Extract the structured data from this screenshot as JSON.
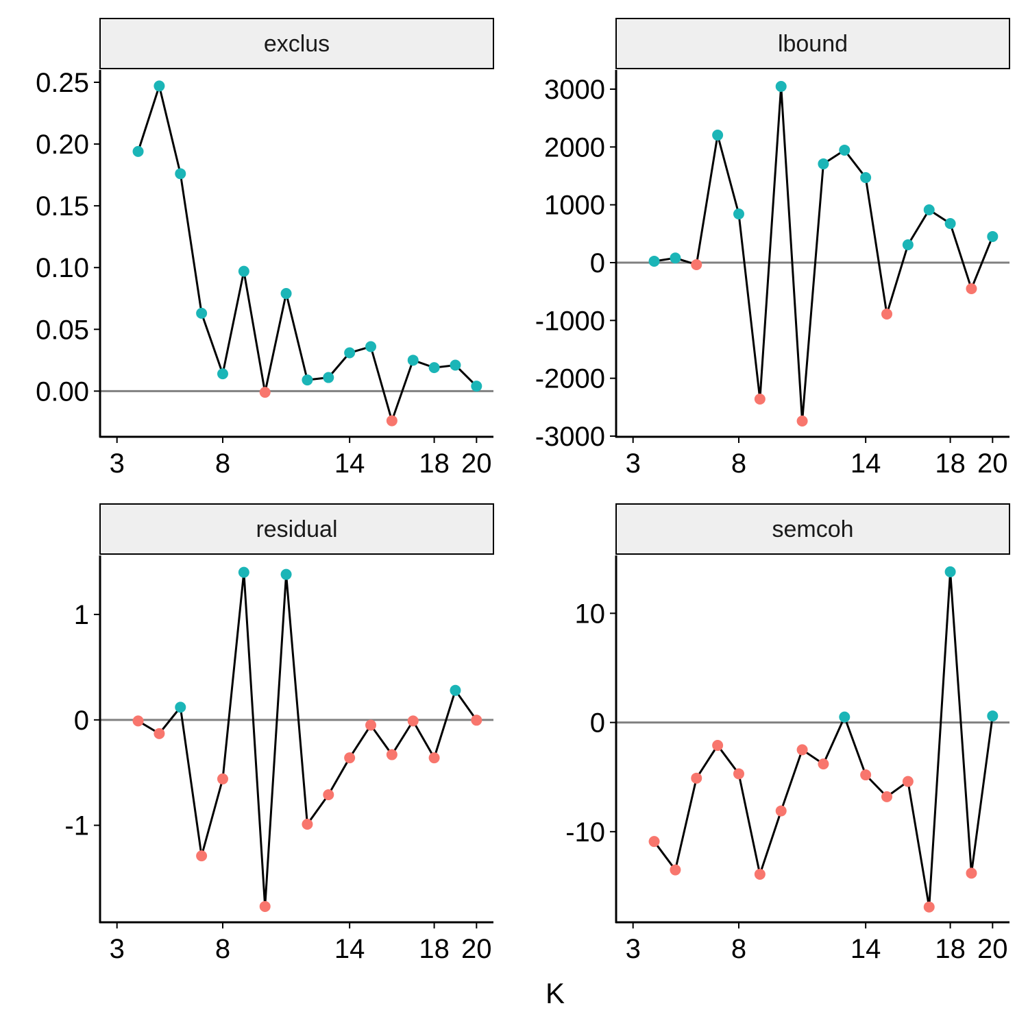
{
  "chart_data": [
    {
      "type": "line",
      "facet": "exclus",
      "x": [
        4,
        5,
        6,
        7,
        8,
        9,
        10,
        11,
        12,
        13,
        14,
        15,
        16,
        17,
        18,
        19,
        20
      ],
      "values": [
        0.194,
        0.247,
        0.176,
        0.063,
        0.014,
        0.097,
        -0.001,
        0.079,
        0.009,
        0.011,
        0.031,
        0.036,
        -0.024,
        0.025,
        0.019,
        0.021,
        0.004
      ],
      "ylim": [
        -0.037,
        0.26
      ],
      "yticks": [
        0,
        0.05,
        0.1,
        0.15,
        0.2,
        0.25
      ],
      "ytick_labels": [
        "0.00",
        "0.05",
        "0.10",
        "0.15",
        "0.20",
        "0.25"
      ]
    },
    {
      "type": "line",
      "facet": "lbound",
      "x": [
        4,
        5,
        6,
        7,
        8,
        9,
        10,
        11,
        12,
        13,
        14,
        15,
        16,
        17,
        18,
        19,
        20
      ],
      "values": [
        24,
        80,
        -35,
        2205,
        842,
        -2360,
        3047,
        -2739,
        1708,
        1945,
        1470,
        -889,
        308,
        913,
        676,
        -451,
        451
      ],
      "ylim": [
        -3012,
        3332
      ],
      "yticks": [
        -3000,
        -2000,
        -1000,
        0,
        1000,
        2000,
        3000
      ],
      "ytick_labels": [
        "-3000",
        "-2000",
        "-1000",
        "0",
        "1000",
        "2000",
        "3000"
      ]
    },
    {
      "type": "line",
      "facet": "residual",
      "x": [
        4,
        5,
        6,
        7,
        8,
        9,
        10,
        11,
        12,
        13,
        14,
        15,
        16,
        17,
        18,
        19,
        20
      ],
      "values": [
        -0.01,
        -0.13,
        0.12,
        -1.29,
        -0.56,
        1.4,
        -1.77,
        1.38,
        -0.99,
        -0.71,
        -0.36,
        -0.05,
        -0.33,
        -0.01,
        -0.36,
        0.28,
        -0.003
      ],
      "ylim": [
        -1.92,
        1.56
      ],
      "yticks": [
        -1,
        0,
        1
      ],
      "ytick_labels": [
        "-1",
        "0",
        "1"
      ]
    },
    {
      "type": "line",
      "facet": "semcoh",
      "x": [
        4,
        5,
        6,
        7,
        8,
        9,
        10,
        11,
        12,
        13,
        14,
        15,
        16,
        17,
        18,
        19,
        20
      ],
      "values": [
        -10.9,
        -13.5,
        -5.1,
        -2.1,
        -4.7,
        -13.9,
        -8.1,
        -2.5,
        -3.8,
        0.5,
        -4.8,
        -6.8,
        -5.4,
        -16.9,
        13.8,
        -13.8,
        0.6
      ],
      "ylim": [
        -18.3,
        15.3
      ],
      "yticks": [
        -10,
        0,
        10
      ],
      "ytick_labels": [
        "-10",
        "0",
        "10"
      ]
    }
  ],
  "xaxis": {
    "label": "K",
    "xlim": [
      2.2,
      20.8
    ],
    "ticks": [
      3,
      8,
      14,
      18,
      20
    ],
    "tick_labels": [
      "3",
      "8",
      "14",
      "18",
      "20"
    ]
  },
  "colors": {
    "positive": "#1BB5B7",
    "negative": "#F8766D",
    "line": "#000000",
    "zero_line": "#808080",
    "strip_fill": "#EFEFEF"
  },
  "zero_line": true,
  "grid": false,
  "legend": "none"
}
